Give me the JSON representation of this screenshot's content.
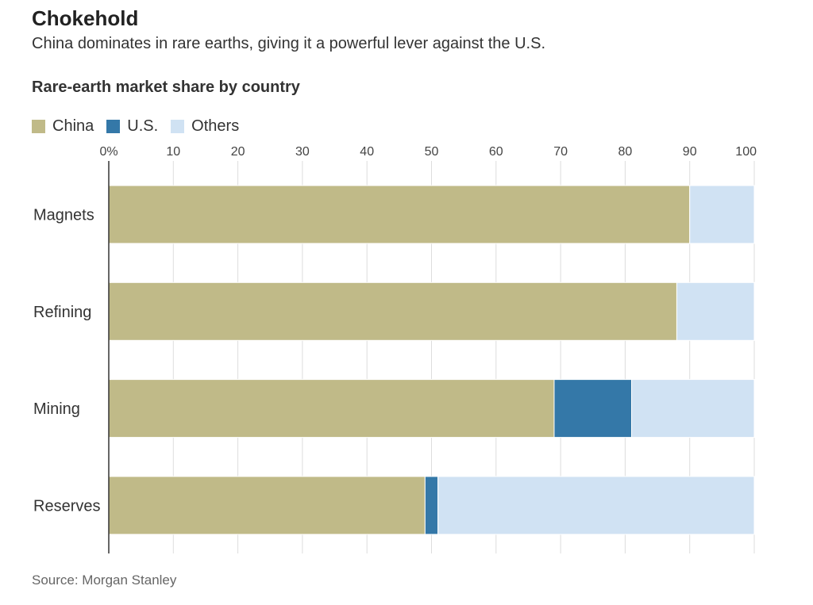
{
  "header": {
    "title": "Chokehold",
    "subtitle": "China dominates in rare earths, giving it a powerful lever against the U.S."
  },
  "source": "Source: Morgan Stanley",
  "colors": {
    "china": "#c0ba88",
    "us": "#3478a8",
    "others": "#d0e2f3",
    "grid": "#dddddd",
    "axis": "#333333"
  },
  "chart_data": {
    "type": "bar",
    "orientation": "horizontal",
    "stacked": true,
    "title": "Rare-earth market share by country",
    "categories": [
      "Magnets",
      "Refining",
      "Mining",
      "Reserves"
    ],
    "series": [
      {
        "name": "China",
        "values": [
          90,
          88,
          69,
          49
        ]
      },
      {
        "name": "U.S.",
        "values": [
          0,
          0,
          12,
          2
        ]
      },
      {
        "name": "Others",
        "values": [
          10,
          12,
          19,
          49
        ]
      }
    ],
    "xlim": [
      0,
      100
    ],
    "ticks": [
      0,
      10,
      20,
      30,
      40,
      50,
      60,
      70,
      80,
      90,
      100
    ],
    "tick_labels": [
      "0%",
      "10",
      "20",
      "30",
      "40",
      "50",
      "60",
      "70",
      "80",
      "90",
      "100"
    ],
    "grid": true,
    "legend_position": "top-left"
  }
}
